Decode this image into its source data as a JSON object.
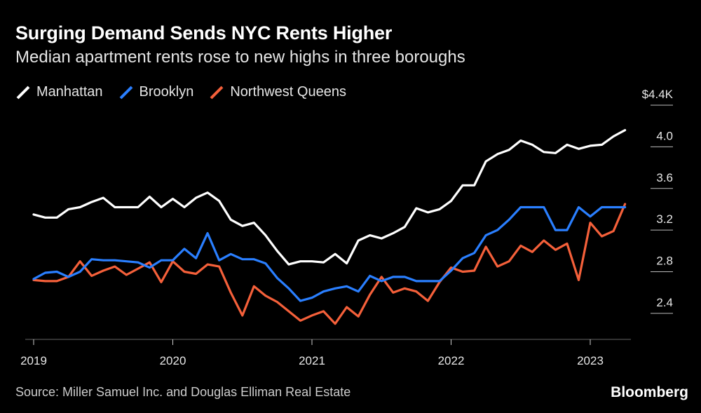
{
  "header": {
    "title": "Surging Demand Sends NYC Rents Higher",
    "subtitle": "Median apartment rents rose to new highs in three boroughs"
  },
  "footer": {
    "source": "Source: Miller Samuel Inc. and Douglas Elliman Real Estate",
    "brand": "Bloomberg"
  },
  "chart_data": {
    "type": "line",
    "title": "Surging Demand Sends NYC Rents Higher",
    "subtitle": "Median apartment rents rose to new highs in three boroughs",
    "xlabel": "",
    "ylabel": "",
    "x_start": "2019-01",
    "x_ticks": [
      "2019",
      "2020",
      "2021",
      "2022",
      "2023"
    ],
    "y_ticks": [
      "2.4",
      "2.8",
      "3.2",
      "3.6",
      "4.0",
      "$4.4K"
    ],
    "y_tick_values": [
      2.4,
      2.8,
      3.2,
      3.6,
      4.0,
      4.4
    ],
    "ylim": [
      2.15,
      4.4
    ],
    "grid": false,
    "legend_position": "top-left",
    "series": [
      {
        "name": "Manhattan",
        "color": "#ffffff",
        "values": [
          3.35,
          3.32,
          3.32,
          3.4,
          3.42,
          3.47,
          3.51,
          3.42,
          3.42,
          3.42,
          3.52,
          3.42,
          3.5,
          3.42,
          3.51,
          3.56,
          3.48,
          3.3,
          3.24,
          3.27,
          3.15,
          3.0,
          2.87,
          2.9,
          2.9,
          2.89,
          2.97,
          2.88,
          3.1,
          3.15,
          3.12,
          3.17,
          3.23,
          3.41,
          3.37,
          3.4,
          3.48,
          3.63,
          3.63,
          3.86,
          3.93,
          3.97,
          4.06,
          4.02,
          3.95,
          3.94,
          4.02,
          3.98,
          4.01,
          4.02,
          4.1,
          4.16
        ]
      },
      {
        "name": "Brooklyn",
        "color": "#2a7fff",
        "values": [
          2.73,
          2.79,
          2.8,
          2.75,
          2.8,
          2.92,
          2.91,
          2.91,
          2.9,
          2.89,
          2.84,
          2.91,
          2.91,
          3.02,
          2.93,
          3.17,
          2.91,
          2.97,
          2.92,
          2.92,
          2.88,
          2.74,
          2.64,
          2.52,
          2.55,
          2.61,
          2.64,
          2.66,
          2.61,
          2.76,
          2.71,
          2.75,
          2.75,
          2.71,
          2.71,
          2.71,
          2.81,
          2.93,
          2.98,
          3.15,
          3.2,
          3.3,
          3.42,
          3.42,
          3.42,
          3.2,
          3.2,
          3.42,
          3.33,
          3.42,
          3.42,
          3.42
        ]
      },
      {
        "name": "Northwest Queens",
        "color": "#f5603a",
        "values": [
          2.72,
          2.71,
          2.71,
          2.75,
          2.9,
          2.76,
          2.81,
          2.85,
          2.77,
          2.83,
          2.89,
          2.7,
          2.9,
          2.8,
          2.78,
          2.87,
          2.85,
          2.6,
          2.38,
          2.66,
          2.57,
          2.51,
          2.42,
          2.33,
          2.38,
          2.42,
          2.3,
          2.46,
          2.37,
          2.58,
          2.75,
          2.6,
          2.64,
          2.61,
          2.52,
          2.7,
          2.84,
          2.8,
          2.81,
          3.04,
          2.85,
          2.9,
          3.05,
          2.99,
          3.1,
          3.01,
          3.07,
          2.72,
          3.27,
          3.14,
          3.19,
          3.45
        ]
      }
    ]
  }
}
